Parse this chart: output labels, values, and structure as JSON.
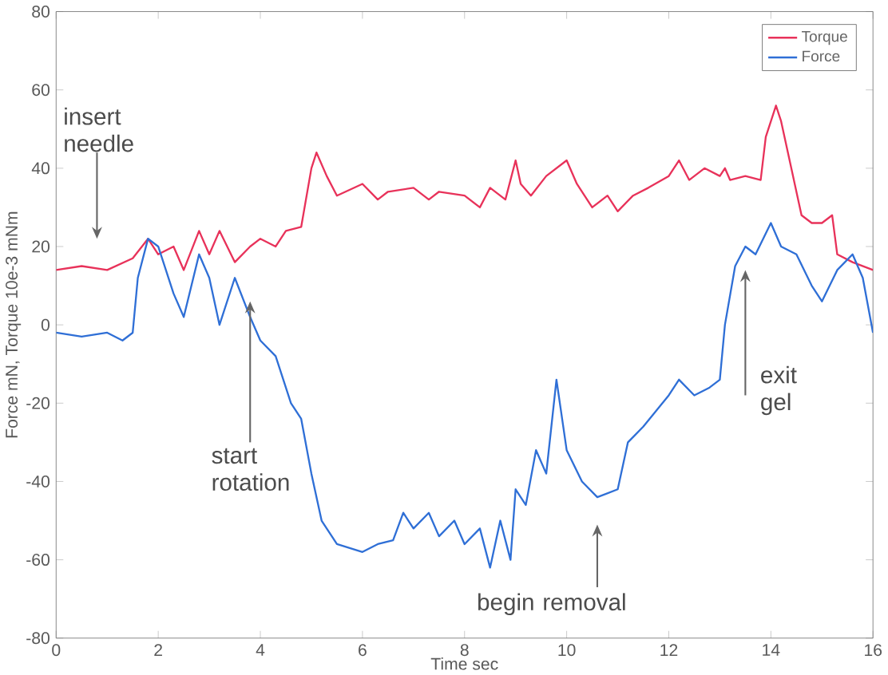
{
  "chart_data": {
    "type": "line",
    "xlabel": "Time sec",
    "ylabel": "Force mN, Torque 10e-3 mNm",
    "xlim": [
      0,
      16
    ],
    "ylim": [
      -80,
      80
    ],
    "xticks": [
      0,
      2,
      4,
      6,
      8,
      10,
      12,
      14,
      16
    ],
    "yticks": [
      -80,
      -60,
      -40,
      -20,
      0,
      20,
      40,
      60,
      80
    ],
    "grid": false,
    "legend": "top right",
    "line_style": "solid",
    "marker": "none",
    "series": [
      {
        "name": "Torque",
        "color": "#e8325a",
        "x": [
          0,
          0.5,
          1,
          1.5,
          1.8,
          2,
          2.3,
          2.5,
          2.8,
          3,
          3.2,
          3.5,
          3.8,
          4,
          4.3,
          4.5,
          4.8,
          5,
          5.1,
          5.3,
          5.5,
          6,
          6.3,
          6.5,
          7,
          7.3,
          7.5,
          8,
          8.3,
          8.5,
          8.8,
          9,
          9.1,
          9.3,
          9.6,
          10,
          10.2,
          10.5,
          10.8,
          11,
          11.3,
          11.6,
          12,
          12.2,
          12.4,
          12.7,
          13,
          13.1,
          13.2,
          13.5,
          13.8,
          13.9,
          14.1,
          14.2,
          14.4,
          14.6,
          14.8,
          15,
          15.2,
          15.3,
          15.6,
          16
        ],
        "values": [
          14,
          15,
          14,
          17,
          22,
          18,
          20,
          14,
          24,
          18,
          24,
          16,
          20,
          22,
          20,
          24,
          25,
          40,
          44,
          38,
          33,
          36,
          32,
          34,
          35,
          32,
          34,
          33,
          30,
          35,
          32,
          42,
          36,
          33,
          38,
          42,
          36,
          30,
          33,
          29,
          33,
          35,
          38,
          42,
          37,
          40,
          38,
          40,
          37,
          38,
          37,
          48,
          56,
          52,
          40,
          28,
          26,
          26,
          28,
          18,
          16,
          14
        ]
      },
      {
        "name": "Force",
        "color": "#2f6fd6",
        "x": [
          0,
          0.5,
          1,
          1.3,
          1.5,
          1.6,
          1.8,
          2,
          2.3,
          2.5,
          2.8,
          3,
          3.2,
          3.5,
          3.8,
          4,
          4.3,
          4.6,
          4.8,
          5,
          5.2,
          5.5,
          6,
          6.3,
          6.6,
          6.8,
          7,
          7.3,
          7.5,
          7.8,
          8,
          8.3,
          8.5,
          8.7,
          8.9,
          9,
          9.2,
          9.4,
          9.6,
          9.8,
          10,
          10.3,
          10.6,
          11,
          11.2,
          11.5,
          12,
          12.2,
          12.5,
          12.8,
          13,
          13.1,
          13.3,
          13.5,
          13.7,
          14,
          14.2,
          14.5,
          14.8,
          15,
          15.3,
          15.6,
          15.8,
          16
        ],
        "values": [
          -2,
          -3,
          -2,
          -4,
          -2,
          12,
          22,
          20,
          8,
          2,
          18,
          12,
          0,
          12,
          2,
          -4,
          -8,
          -20,
          -24,
          -38,
          -50,
          -56,
          -58,
          -56,
          -55,
          -48,
          -52,
          -48,
          -54,
          -50,
          -56,
          -52,
          -62,
          -50,
          -60,
          -42,
          -46,
          -32,
          -38,
          -14,
          -32,
          -40,
          -44,
          -42,
          -30,
          -26,
          -18,
          -14,
          -18,
          -16,
          -14,
          0,
          15,
          20,
          18,
          26,
          20,
          18,
          10,
          6,
          14,
          18,
          12,
          -2
        ]
      }
    ],
    "annotations": [
      "insert needle",
      {
        "text": "start rotation",
        "x": 3.8,
        "y": 6
      },
      "begin removal",
      "exit gel"
    ]
  }
}
